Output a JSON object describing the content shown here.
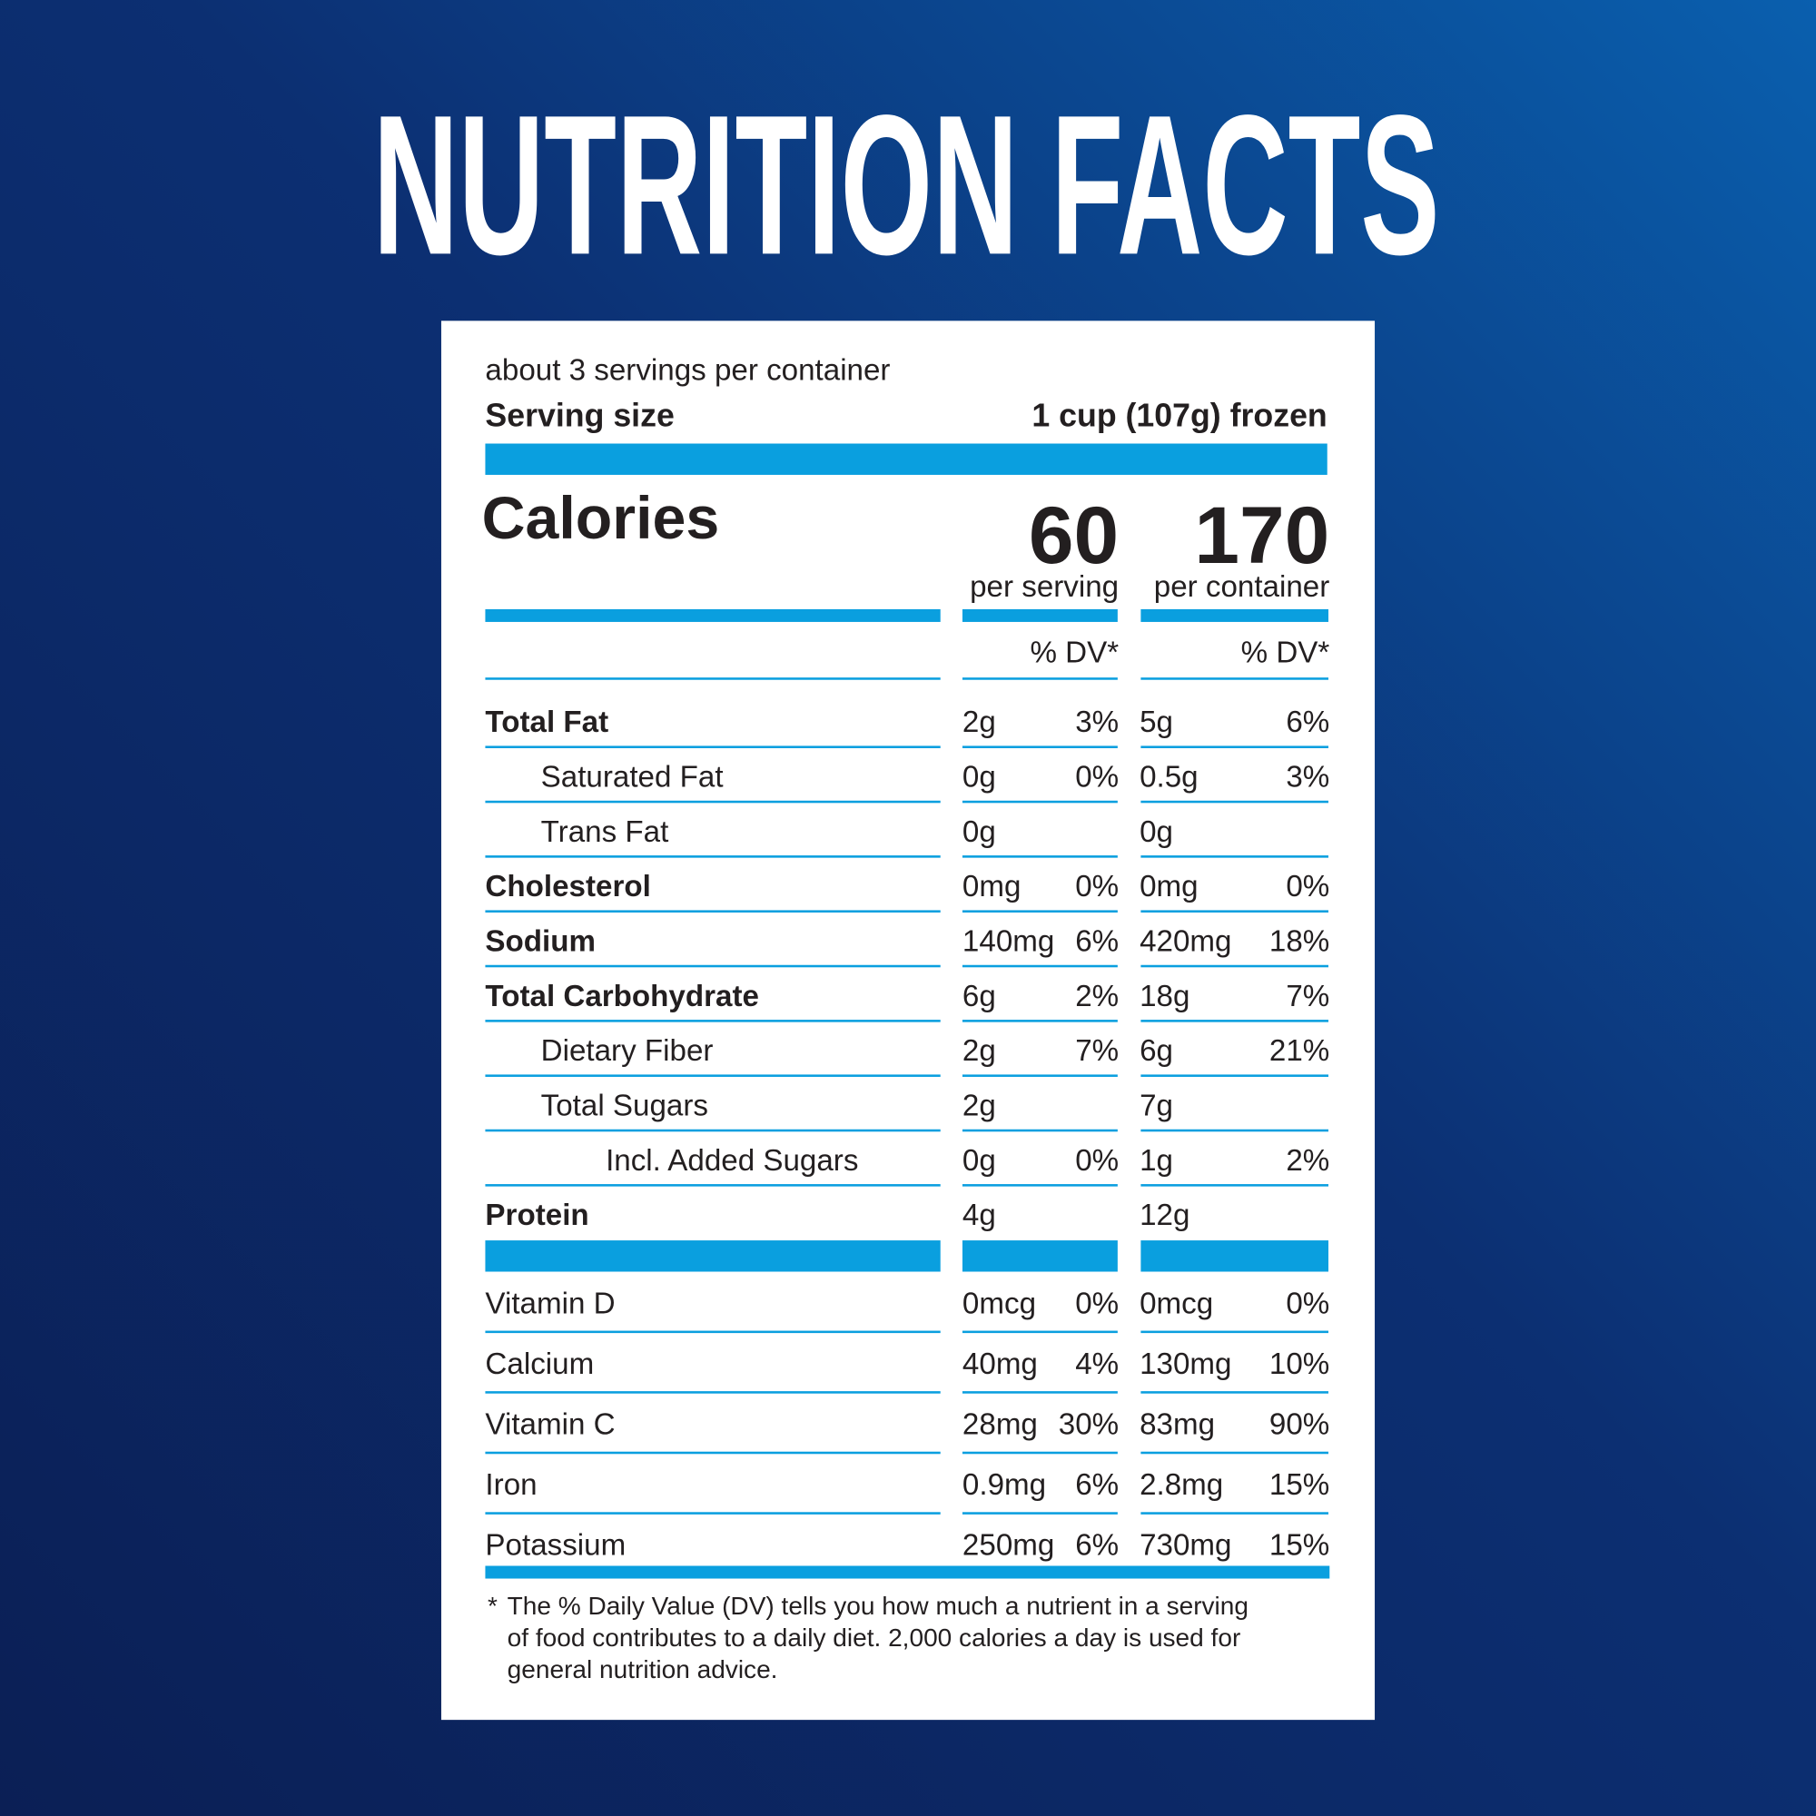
{
  "title": "NUTRITION FACTS",
  "header": {
    "servings": "about 3 servings per container",
    "serving_size_label": "Serving size",
    "serving_size": "1 cup (107g) frozen"
  },
  "calories": {
    "label": "Calories",
    "per_serving": 60,
    "per_serving_label": "per serving",
    "per_container": 170,
    "per_container_label": "per container"
  },
  "dv_header": [
    "% DV*",
    "% DV*"
  ],
  "nutrients": [
    {
      "name": "Total Fat",
      "serving_amount": "2g",
      "serving_dv": "3%",
      "container_amount": "5g",
      "container_dv": "6%"
    },
    {
      "name": "Saturated Fat",
      "serving_amount": "0g",
      "serving_dv": "0%",
      "container_amount": "0.5g",
      "container_dv": "3%"
    },
    {
      "name": "Trans Fat",
      "serving_amount": "0g",
      "container_amount": "0g"
    },
    {
      "name": "Cholesterol",
      "serving_amount": "0mg",
      "serving_dv": "0%",
      "container_amount": "0mg",
      "container_dv": "0%"
    },
    {
      "name": "Sodium",
      "serving_amount": "140mg",
      "serving_dv": "6%",
      "container_amount": "420mg",
      "container_dv": "18%"
    },
    {
      "name": "Total Carbohydrate",
      "serving_amount": "6g",
      "serving_dv": "2%",
      "container_amount": "18g",
      "container_dv": "7%"
    },
    {
      "name": "Dietary Fiber",
      "serving_amount": "2g",
      "serving_dv": "7%",
      "container_amount": "6g",
      "container_dv": "21%"
    },
    {
      "name": "Total Sugars",
      "serving_amount": "2g",
      "container_amount": "7g"
    },
    {
      "name": "Incl. Added Sugars",
      "serving_amount": "0g",
      "serving_dv": "0%",
      "container_amount": "1g",
      "container_dv": "2%"
    },
    {
      "name": "Protein",
      "serving_amount": "4g",
      "container_amount": "12g"
    }
  ],
  "vitamins": [
    {
      "name": "Vitamin D",
      "serving_amount": "0mcg",
      "serving_dv": "0%",
      "container_amount": "0mcg",
      "container_dv": "0%"
    },
    {
      "name": "Calcium",
      "serving_amount": "40mg",
      "serving_dv": "4%",
      "container_amount": "130mg",
      "container_dv": "10%"
    },
    {
      "name": "Vitamin C",
      "serving_amount": "28mg",
      "serving_dv": "30%",
      "container_amount": "83mg",
      "container_dv": "90%"
    },
    {
      "name": "Iron",
      "serving_amount": "0.9mg",
      "serving_dv": "6%",
      "container_amount": "2.8mg",
      "container_dv": "15%"
    },
    {
      "name": "Potassium",
      "serving_amount": "250mg",
      "serving_dv": "6%",
      "container_amount": "730mg",
      "container_dv": "15%"
    }
  ],
  "footnote": {
    "marker": "*",
    "lines": [
      "The % Daily Value (DV) tells you how much a nutrient in a serving",
      "of food contributes to a daily diet. 2,000 calories a day is used for",
      "general nutrition advice."
    ]
  }
}
